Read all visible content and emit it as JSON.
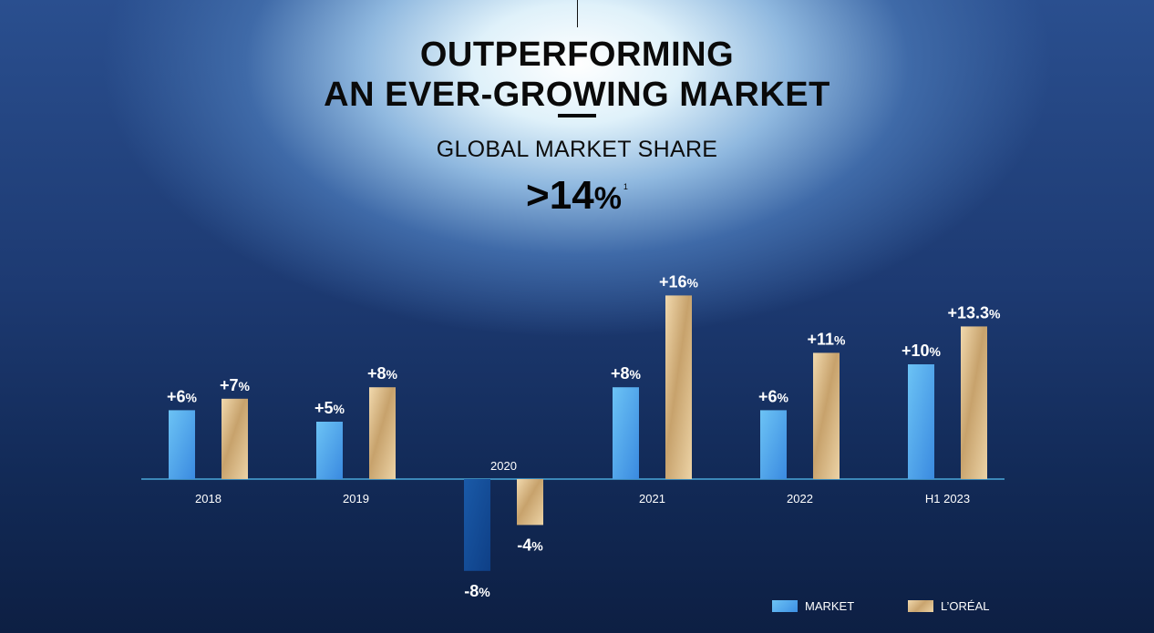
{
  "header": {
    "title_line1": "OUTPERFORMING",
    "title_line2": "AN EVER-GROWING MARKET",
    "subtitle": "GLOBAL MARKET SHARE",
    "share_value": ">14",
    "share_unit": "%",
    "share_footnote": "1"
  },
  "colors": {
    "market_top": "#6cc3f5",
    "market_bottom": "#3a8ae0",
    "market_negative_top": "#1a5aa8",
    "market_negative_bottom": "#0e3f86",
    "loreal_light": "#f1d9ae",
    "loreal_dark": "#c7a26c",
    "axis": "#4aa8d8"
  },
  "chart_data": {
    "type": "bar",
    "categories": [
      "2018",
      "2019",
      "2020",
      "2021",
      "2022",
      "H1 2023"
    ],
    "series": [
      {
        "name": "MARKET",
        "values": [
          6,
          5,
          -8,
          8,
          6,
          10
        ],
        "labels": [
          "+6%",
          "+5%",
          "-8%",
          "+8%",
          "+6%",
          "+10%"
        ]
      },
      {
        "name": "L'ORÉAL",
        "values": [
          7,
          8,
          -4,
          16,
          11,
          13.3
        ],
        "labels": [
          "+7%",
          "+8%",
          "-4%",
          "+16%",
          "+11%",
          "+13.3%"
        ]
      }
    ],
    "ylim": [
      -8,
      16
    ],
    "legend": "bottom-right",
    "grid": false
  },
  "legend": {
    "market_label": "MARKET",
    "loreal_label": "L’ORÉAL"
  }
}
